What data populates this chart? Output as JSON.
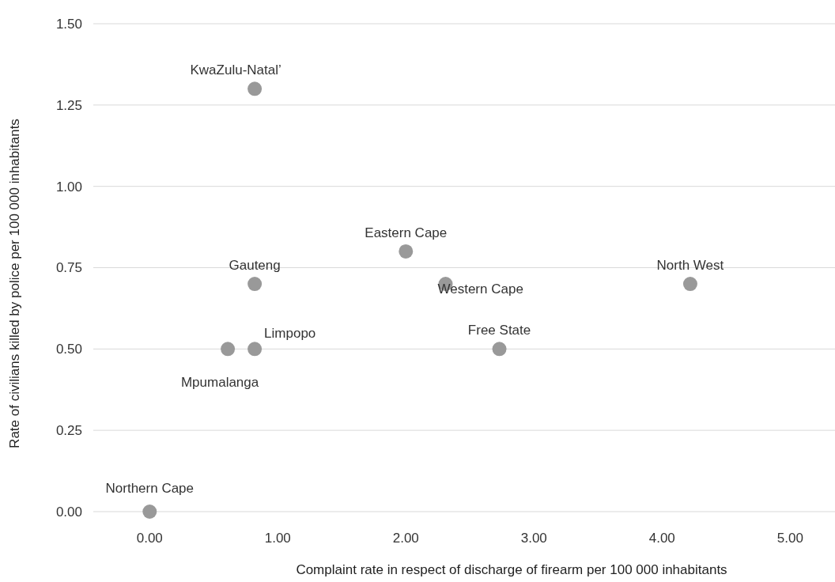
{
  "chart_data": {
    "type": "scatter",
    "xlabel": "Complaint rate in respect of discharge of firearm per 100 000 inhabitants",
    "ylabel": "Rate of civilians killed by police per 100 000 inhabitants",
    "series": [
      {
        "color": "#999999",
        "x": [
          0,
          0.61,
          0.82,
          0.82,
          0.82,
          2.0,
          2.31,
          2.73,
          4.22
        ],
        "values": [
          0,
          0.5,
          0.5,
          0.7,
          1.3,
          0.8,
          0.7,
          0.5,
          0.7
        ]
      }
    ],
    "annotations": [
      {
        "text": "Northern Cape",
        "x": 0,
        "y": 0
      },
      {
        "text": "Mpumalanga",
        "x": 0.61,
        "y": 0.5
      },
      {
        "text": "Limpopo",
        "x": 0.82,
        "y": 0.5
      },
      {
        "text": "Gauteng",
        "x": 0.82,
        "y": 0.7
      },
      {
        "text": "KwaZulu-Natal’",
        "x": 0.82,
        "y": 1.3
      },
      {
        "text": "Eastern Cape",
        "x": 2.0,
        "y": 0.8
      },
      {
        "text": "Western Cape",
        "x": 2.31,
        "y": 0.7
      },
      {
        "text": "Free State",
        "x": 2.73,
        "y": 0.5
      },
      {
        "text": "North West",
        "x": 4.22,
        "y": 0.7
      }
    ],
    "xlim": [
      -0.44,
      5.35
    ],
    "xticks": [
      {
        "value": 0,
        "label": "0.00"
      },
      {
        "value": 1,
        "label": "1.00"
      },
      {
        "value": 2,
        "label": "2.00"
      },
      {
        "value": 3,
        "label": "3.00"
      },
      {
        "value": 4,
        "label": "4.00"
      },
      {
        "value": 5,
        "label": "5.00"
      }
    ],
    "ylim": [
      0,
      1.5
    ],
    "yticks": [
      {
        "value": 0,
        "label": "0.00"
      },
      {
        "value": 0.25,
        "label": "0.25"
      },
      {
        "value": 0.5,
        "label": "0.50"
      },
      {
        "value": 0.75,
        "label": "0.75"
      },
      {
        "value": 1,
        "label": "1.00"
      },
      {
        "value": 1.25,
        "label": "1.25"
      },
      {
        "value": 1.5,
        "label": "1.50"
      }
    ],
    "grid": "y",
    "marker": "circle"
  }
}
